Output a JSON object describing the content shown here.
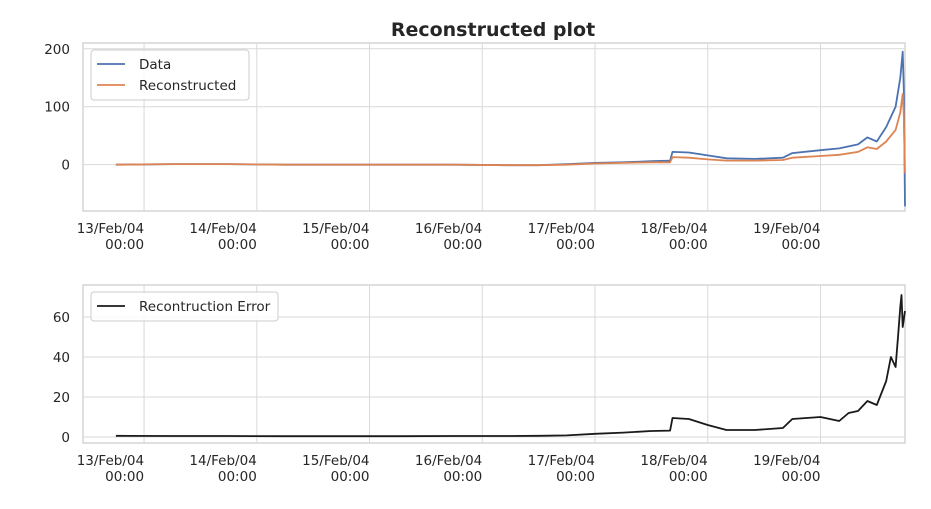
{
  "chart_data": [
    {
      "type": "line",
      "title": "Reconstructed plot",
      "xlabel": "",
      "ylabel": "",
      "x_range": [
        "2004-02-12T11:00",
        "2004-02-19T18:00"
      ],
      "ylim": [
        -80,
        210
      ],
      "y_ticks": [
        0,
        100,
        200
      ],
      "x_ticks": [
        {
          "line1": "13/Feb/04",
          "line2": "00:00"
        },
        {
          "line1": "14/Feb/04",
          "line2": "00:00"
        },
        {
          "line1": "15/Feb/04",
          "line2": "00:00"
        },
        {
          "line1": "16/Feb/04",
          "line2": "00:00"
        },
        {
          "line1": "17/Feb/04",
          "line2": "00:00"
        },
        {
          "line1": "18/Feb/04",
          "line2": "00:00"
        },
        {
          "line1": "19/Feb/04",
          "line2": "00:00"
        }
      ],
      "grid": true,
      "legend_position": "upper-left",
      "series": [
        {
          "name": "Data",
          "color": "#4c72b0",
          "points": [
            [
              "2004-02-12T18:00",
              0
            ],
            [
              "2004-02-13T06:00",
              1
            ],
            [
              "2004-02-13T18:00",
              1
            ],
            [
              "2004-02-14T06:00",
              0
            ],
            [
              "2004-02-14T18:00",
              0
            ],
            [
              "2004-02-15T06:00",
              0
            ],
            [
              "2004-02-15T18:00",
              0
            ],
            [
              "2004-02-16T06:00",
              -1
            ],
            [
              "2004-02-16T12:00",
              -1
            ],
            [
              "2004-02-16T18:00",
              1
            ],
            [
              "2004-02-17T00:00",
              3
            ],
            [
              "2004-02-17T06:00",
              4
            ],
            [
              "2004-02-17T12:00",
              6
            ],
            [
              "2004-02-17T16:00",
              7
            ],
            [
              "2004-02-17T16:30",
              22
            ],
            [
              "2004-02-17T20:00",
              21
            ],
            [
              "2004-02-18T00:00",
              16
            ],
            [
              "2004-02-18T04:00",
              11
            ],
            [
              "2004-02-18T10:00",
              10
            ],
            [
              "2004-02-18T16:00",
              12
            ],
            [
              "2004-02-18T18:00",
              20
            ],
            [
              "2004-02-19T00:00",
              25
            ],
            [
              "2004-02-19T04:00",
              28
            ],
            [
              "2004-02-19T08:00",
              35
            ],
            [
              "2004-02-19T10:00",
              47
            ],
            [
              "2004-02-19T12:00",
              40
            ],
            [
              "2004-02-19T14:00",
              65
            ],
            [
              "2004-02-19T16:00",
              100
            ],
            [
              "2004-02-19T17:00",
              150
            ],
            [
              "2004-02-19T17:30",
              195
            ],
            [
              "2004-02-19T17:45",
              130
            ],
            [
              "2004-02-19T18:00",
              -72
            ]
          ]
        },
        {
          "name": "Reconstructed",
          "color": "#dd8452",
          "points": [
            [
              "2004-02-12T18:00",
              0
            ],
            [
              "2004-02-13T06:00",
              1
            ],
            [
              "2004-02-13T18:00",
              1
            ],
            [
              "2004-02-14T06:00",
              0
            ],
            [
              "2004-02-14T18:00",
              0
            ],
            [
              "2004-02-15T06:00",
              0
            ],
            [
              "2004-02-15T18:00",
              0
            ],
            [
              "2004-02-16T06:00",
              -1
            ],
            [
              "2004-02-16T12:00",
              -1
            ],
            [
              "2004-02-16T18:00",
              0
            ],
            [
              "2004-02-17T00:00",
              2
            ],
            [
              "2004-02-17T06:00",
              3
            ],
            [
              "2004-02-17T12:00",
              4
            ],
            [
              "2004-02-17T16:00",
              4
            ],
            [
              "2004-02-17T16:30",
              13
            ],
            [
              "2004-02-17T20:00",
              12
            ],
            [
              "2004-02-18T00:00",
              9
            ],
            [
              "2004-02-18T04:00",
              7
            ],
            [
              "2004-02-18T10:00",
              7
            ],
            [
              "2004-02-18T16:00",
              8
            ],
            [
              "2004-02-18T18:00",
              12
            ],
            [
              "2004-02-19T00:00",
              15
            ],
            [
              "2004-02-19T04:00",
              17
            ],
            [
              "2004-02-19T08:00",
              22
            ],
            [
              "2004-02-19T10:00",
              30
            ],
            [
              "2004-02-19T12:00",
              27
            ],
            [
              "2004-02-19T14:00",
              40
            ],
            [
              "2004-02-19T16:00",
              60
            ],
            [
              "2004-02-19T17:00",
              90
            ],
            [
              "2004-02-19T17:30",
              122
            ],
            [
              "2004-02-19T17:45",
              85
            ],
            [
              "2004-02-19T18:00",
              -15
            ]
          ]
        }
      ]
    },
    {
      "type": "line",
      "title": "",
      "xlabel": "",
      "ylabel": "",
      "x_range": [
        "2004-02-12T11:00",
        "2004-02-19T18:00"
      ],
      "ylim": [
        -3,
        76
      ],
      "y_ticks": [
        0,
        20,
        40,
        60
      ],
      "x_ticks": [
        {
          "line1": "13/Feb/04",
          "line2": "00:00"
        },
        {
          "line1": "14/Feb/04",
          "line2": "00:00"
        },
        {
          "line1": "15/Feb/04",
          "line2": "00:00"
        },
        {
          "line1": "16/Feb/04",
          "line2": "00:00"
        },
        {
          "line1": "17/Feb/04",
          "line2": "00:00"
        },
        {
          "line1": "18/Feb/04",
          "line2": "00:00"
        },
        {
          "line1": "19/Feb/04",
          "line2": "00:00"
        }
      ],
      "grid": true,
      "legend_position": "upper-left",
      "series": [
        {
          "name": "Recontruction Error",
          "color": "#1a1a1a",
          "points": [
            [
              "2004-02-12T18:00",
              0.6
            ],
            [
              "2004-02-13T06:00",
              0.5
            ],
            [
              "2004-02-13T18:00",
              0.5
            ],
            [
              "2004-02-14T06:00",
              0.4
            ],
            [
              "2004-02-14T18:00",
              0.4
            ],
            [
              "2004-02-15T06:00",
              0.4
            ],
            [
              "2004-02-15T18:00",
              0.5
            ],
            [
              "2004-02-16T06:00",
              0.5
            ],
            [
              "2004-02-16T12:00",
              0.6
            ],
            [
              "2004-02-16T18:00",
              0.8
            ],
            [
              "2004-02-17T00:00",
              1.6
            ],
            [
              "2004-02-17T06:00",
              2.2
            ],
            [
              "2004-02-17T12:00",
              3.0
            ],
            [
              "2004-02-17T16:00",
              3.2
            ],
            [
              "2004-02-17T16:30",
              9.5
            ],
            [
              "2004-02-17T20:00",
              9.0
            ],
            [
              "2004-02-18T00:00",
              6.0
            ],
            [
              "2004-02-18T04:00",
              3.5
            ],
            [
              "2004-02-18T10:00",
              3.5
            ],
            [
              "2004-02-18T16:00",
              4.5
            ],
            [
              "2004-02-18T18:00",
              9.0
            ],
            [
              "2004-02-19T00:00",
              10.0
            ],
            [
              "2004-02-19T04:00",
              8.0
            ],
            [
              "2004-02-19T06:00",
              12.0
            ],
            [
              "2004-02-19T08:00",
              13.0
            ],
            [
              "2004-02-19T10:00",
              18.0
            ],
            [
              "2004-02-19T12:00",
              16.0
            ],
            [
              "2004-02-19T14:00",
              28.0
            ],
            [
              "2004-02-19T15:00",
              40.0
            ],
            [
              "2004-02-19T16:00",
              35.0
            ],
            [
              "2004-02-19T16:30",
              50.0
            ],
            [
              "2004-02-19T17:00",
              65.0
            ],
            [
              "2004-02-19T17:15",
              71.0
            ],
            [
              "2004-02-19T17:30",
              55.0
            ],
            [
              "2004-02-19T18:00",
              63.0
            ]
          ]
        }
      ]
    }
  ]
}
